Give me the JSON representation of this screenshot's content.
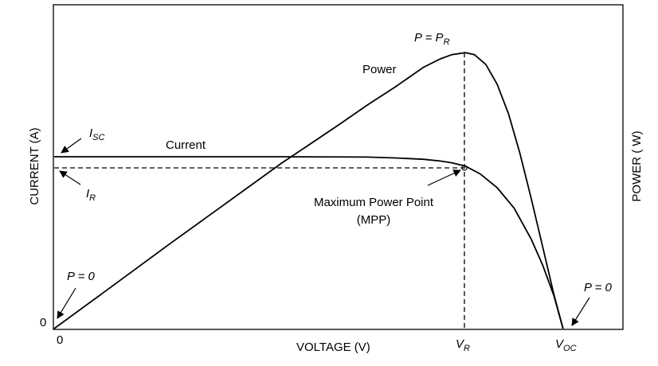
{
  "chart_data": {
    "type": "line",
    "xlabel": "VOLTAGE (V)",
    "ylabel_left": "CURRENT (A)",
    "ylabel_right": "POWER ( W)",
    "xlim": [
      0,
      1
    ],
    "ylim": [
      0,
      1
    ],
    "x_ticks": [
      {
        "x": 0,
        "label": "0"
      },
      {
        "x": 0.724,
        "label": "V",
        "sub": "R"
      },
      {
        "x": 0.896,
        "label": "V",
        "sub": "OC"
      }
    ],
    "y_ticks": [
      {
        "y": 0,
        "label": "0"
      }
    ],
    "series": [
      {
        "name": "Current",
        "color": "#000000",
        "x": [
          0,
          0.05,
          0.2,
          0.4,
          0.55,
          0.6,
          0.65,
          0.68,
          0.7,
          0.724,
          0.75,
          0.78,
          0.81,
          0.84,
          0.86,
          0.88,
          0.896
        ],
        "y": [
          1.0,
          1.0,
          1.0,
          1.0,
          0.998,
          0.993,
          0.985,
          0.975,
          0.965,
          0.946,
          0.9,
          0.82,
          0.7,
          0.52,
          0.37,
          0.19,
          0.0
        ]
      },
      {
        "name": "Power",
        "color": "#000000",
        "x": [
          0,
          0.1,
          0.2,
          0.3,
          0.4,
          0.5,
          0.55,
          0.6,
          0.65,
          0.68,
          0.7,
          0.724,
          0.74,
          0.76,
          0.78,
          0.8,
          0.82,
          0.84,
          0.86,
          0.88,
          0.896
        ],
        "y": [
          0,
          0.147,
          0.295,
          0.44,
          0.585,
          0.72,
          0.79,
          0.855,
          0.925,
          0.955,
          0.97,
          0.977,
          0.97,
          0.935,
          0.865,
          0.76,
          0.62,
          0.46,
          0.29,
          0.12,
          0.0
        ]
      }
    ],
    "annotations": [
      {
        "label": "I",
        "sub": "SC"
      },
      {
        "label": "I",
        "sub": "R"
      },
      {
        "label": "P = P",
        "sub": "R"
      },
      {
        "label": "Maximum Power Point"
      },
      {
        "label": "(MPP)"
      },
      {
        "label": "P = 0"
      },
      {
        "label": "P = 0"
      }
    ],
    "grid": false,
    "legend": "none"
  }
}
